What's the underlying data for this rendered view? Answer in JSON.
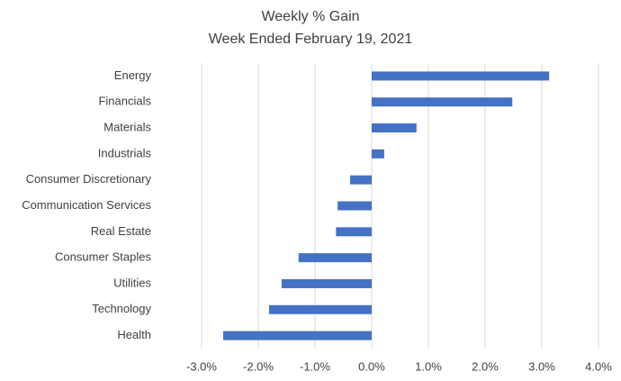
{
  "chart_data": {
    "type": "bar",
    "orientation": "horizontal",
    "title": "Weekly % Gain",
    "subtitle": "Week Ended February 19, 2021",
    "categories": [
      "Energy",
      "Financials",
      "Materials",
      "Industrials",
      "Consumer Discretionary",
      "Communication Services",
      "Real Estate",
      "Consumer Staples",
      "Utilities",
      "Technology",
      "Health"
    ],
    "values": [
      3.13,
      2.48,
      0.79,
      0.22,
      -0.38,
      -0.6,
      -0.63,
      -1.29,
      -1.59,
      -1.81,
      -2.62
    ],
    "color": "#4472c4",
    "xlim": [
      -3,
      4
    ],
    "xticks": [
      {
        "value": -3,
        "label": "-3.0%"
      },
      {
        "value": -2,
        "label": "-2.0%"
      },
      {
        "value": -1,
        "label": "-1.0%"
      },
      {
        "value": 0,
        "label": "0.0%"
      },
      {
        "value": 1,
        "label": "1.0%"
      },
      {
        "value": 2,
        "label": "2.0%"
      },
      {
        "value": 3,
        "label": "3.0%"
      },
      {
        "value": 4,
        "label": "4.0%"
      }
    ],
    "grid": true
  }
}
